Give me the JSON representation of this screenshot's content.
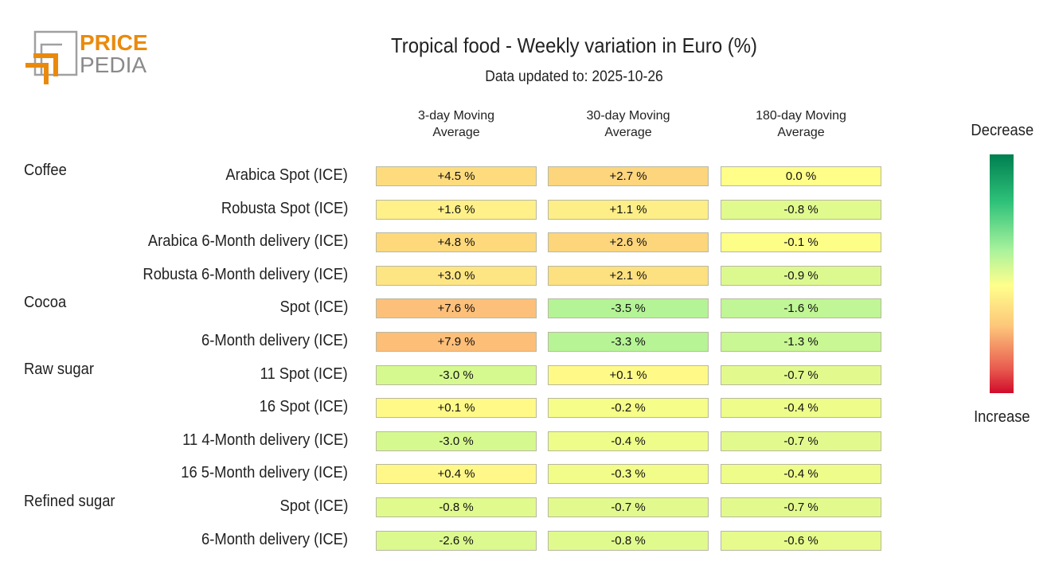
{
  "logo": {
    "text_top": "PRICE",
    "text_bottom": "PEDIA"
  },
  "chart_data": {
    "type": "table",
    "title": "Tropical food - Weekly variation in Euro (%)",
    "subtitle": "Data updated to: 2025-10-26",
    "columns": [
      "3-day Moving\nAverage",
      "30-day Moving\nAverage",
      "180-day Moving\nAverage"
    ],
    "colorbar": {
      "top_label": "Decrease",
      "bottom_label": "Increase",
      "colors": [
        "#007f50",
        "#a8f29c",
        "#ffff8c",
        "#fdc67a",
        "#d10b2a"
      ]
    },
    "rows": [
      {
        "group": "Coffee",
        "label": "Arabica Spot (ICE)",
        "values": [
          "+4.5 %",
          "+2.7 %",
          "0.0 %"
        ],
        "colors": [
          "#fedc7e",
          "#fdd57c",
          "#fefe88"
        ]
      },
      {
        "group": "",
        "label": "Robusta Spot (ICE)",
        "values": [
          "+1.6 %",
          "+1.1 %",
          "-0.8 %"
        ],
        "colors": [
          "#fff08a",
          "#fdee88",
          "#e0fa8e"
        ]
      },
      {
        "group": "",
        "label": "Arabica 6-Month delivery (ICE)",
        "values": [
          "+4.8 %",
          "+2.6 %",
          "-0.1 %"
        ],
        "colors": [
          "#fed97c",
          "#fdd57b",
          "#fcfe88"
        ]
      },
      {
        "group": "",
        "label": "Robusta 6-Month delivery (ICE)",
        "values": [
          "+3.0 %",
          "+2.1 %",
          "-0.9 %"
        ],
        "colors": [
          "#fee583",
          "#fde07f",
          "#dcf990"
        ]
      },
      {
        "group": "Cocoa",
        "label": "Spot (ICE)",
        "values": [
          "+7.6 %",
          "-3.5 %",
          "-1.6 %"
        ],
        "colors": [
          "#fdc07a",
          "#b4f497",
          "#c0f695"
        ]
      },
      {
        "group": "",
        "label": "6-Month delivery (ICE)",
        "values": [
          "+7.9 %",
          "-3.3 %",
          "-1.3 %"
        ],
        "colors": [
          "#fdbe78",
          "#b6f496",
          "#c8f793"
        ]
      },
      {
        "group": "Raw sugar",
        "label": "11 Spot (ICE)",
        "values": [
          "-3.0 %",
          "+0.1 %",
          "-0.7 %"
        ],
        "colors": [
          "#d6f98f",
          "#fffa88",
          "#e2fa8d"
        ]
      },
      {
        "group": "",
        "label": "16 Spot (ICE)",
        "values": [
          "+0.1 %",
          "-0.2 %",
          "-0.4 %"
        ],
        "colors": [
          "#fffa88",
          "#f6fd88",
          "#eefc8a"
        ]
      },
      {
        "group": "",
        "label": "11 4-Month delivery (ICE)",
        "values": [
          "-3.0 %",
          "-0.4 %",
          "-0.7 %"
        ],
        "colors": [
          "#d6f98f",
          "#eefc8a",
          "#e2fa8d"
        ]
      },
      {
        "group": "",
        "label": "16 5-Month delivery (ICE)",
        "values": [
          "+0.4 %",
          "-0.3 %",
          "-0.4 %"
        ],
        "colors": [
          "#fff888",
          "#f2fc89",
          "#eefc8a"
        ]
      },
      {
        "group": "Refined sugar",
        "label": "Spot (ICE)",
        "values": [
          "-0.8 %",
          "-0.7 %",
          "-0.7 %"
        ],
        "colors": [
          "#e0fa8e",
          "#e2fa8d",
          "#e2fa8d"
        ]
      },
      {
        "group": "",
        "label": "6-Month delivery (ICE)",
        "values": [
          "-2.6 %",
          "-0.8 %",
          "-0.6 %"
        ],
        "colors": [
          "#dbf98e",
          "#e0fa8e",
          "#e6fb8c"
        ]
      }
    ]
  }
}
